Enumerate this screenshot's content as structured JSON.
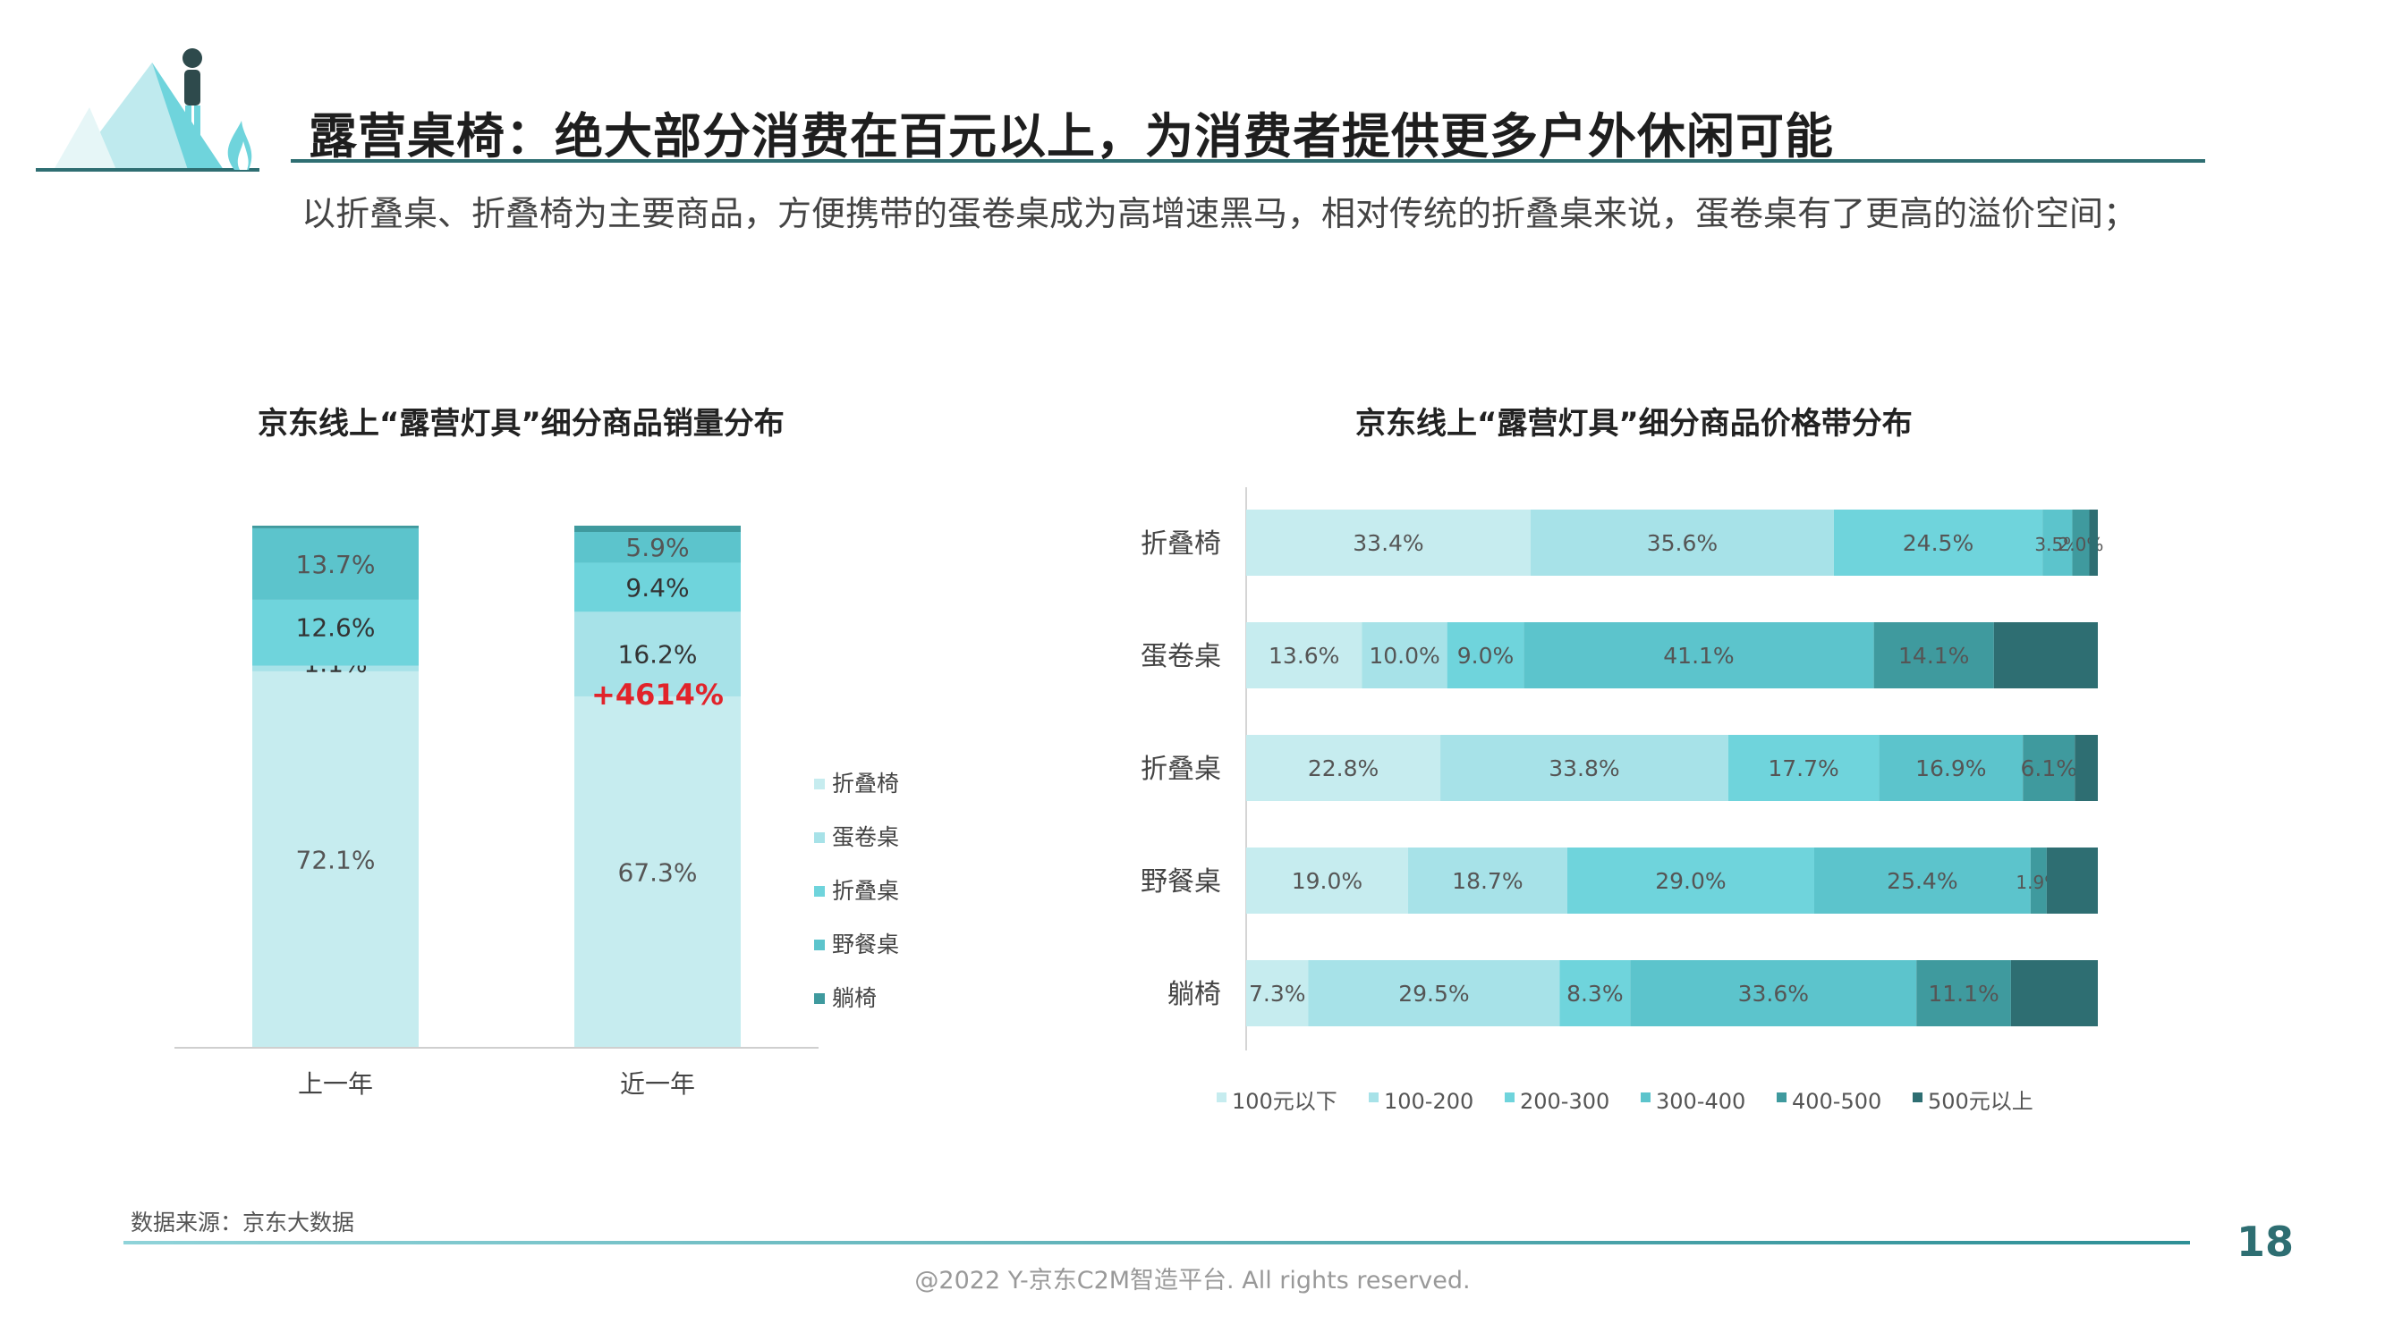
{
  "header": {
    "title": "露营桌椅：绝大部分消费在百元以上，为消费者提供更多户外休闲可能",
    "subtitle": "以折叠桌、折叠椅为主要商品，方便携带的蛋卷桌成为高增速黑马，相对传统的折叠桌来说，蛋卷桌有了更高的溢价空间；"
  },
  "footer": {
    "source": "数据来源：京东大数据",
    "page_number": "18",
    "copyright": "@2022 Y-京东C2M智造平台. All rights reserved."
  },
  "colors": {
    "c1": "#c6ecef",
    "c2": "#a7e2e8",
    "c3": "#6fd4dc",
    "c4": "#5cc4cc",
    "c5": "#3f9a9e",
    "accent": "#2e6e72",
    "highlight": "#e1242b"
  },
  "chart_data": [
    {
      "type": "bar",
      "stacked": true,
      "title": "京东线上“露营灯具”细分商品销量分布",
      "categories": [
        "上一年",
        "近一年"
      ],
      "series": [
        {
          "name": "折叠椅",
          "values": [
            72.1,
            67.3
          ]
        },
        {
          "name": "蛋卷桌",
          "values": [
            1.1,
            16.2
          ]
        },
        {
          "name": "折叠桌",
          "values": [
            12.6,
            9.4
          ]
        },
        {
          "name": "野餐桌",
          "values": [
            13.7,
            5.9
          ]
        },
        {
          "name": "躺椅",
          "values": [
            0.5,
            1.2
          ]
        }
      ],
      "labels": [
        [
          "72.1%",
          "1.1%",
          "12.6%",
          "13.7%",
          ""
        ],
        [
          "67.3%",
          "16.2%",
          "9.4%",
          "5.9%",
          ""
        ]
      ],
      "annotation": {
        "category": "近一年",
        "text": "+4614%"
      },
      "ylim": [
        0,
        100
      ],
      "legend": "right"
    },
    {
      "type": "bar",
      "orientation": "horizontal",
      "stacked": true,
      "title": "京东线上“露营灯具”细分商品价格带分布",
      "categories": [
        "折叠椅",
        "蛋卷桌",
        "折叠桌",
        "野餐桌",
        "躺椅"
      ],
      "series": [
        {
          "name": "100元以下",
          "values": [
            33.4,
            13.6,
            22.8,
            19.0,
            7.3
          ]
        },
        {
          "name": "100-200",
          "values": [
            35.6,
            10.0,
            33.8,
            18.7,
            29.5
          ]
        },
        {
          "name": "200-300",
          "values": [
            24.5,
            9.0,
            17.7,
            29.0,
            8.3
          ]
        },
        {
          "name": "300-400",
          "values": [
            3.5,
            41.1,
            16.9,
            25.4,
            33.6
          ]
        },
        {
          "name": "400-500",
          "values": [
            2.0,
            14.1,
            6.1,
            1.9,
            11.1
          ]
        },
        {
          "name": "500元以上",
          "values": [
            1.0,
            12.2,
            2.7,
            6.0,
            10.2
          ]
        }
      ],
      "labels": [
        [
          "33.4%",
          "35.6%",
          "24.5%",
          "3.5%",
          "2.0%",
          ""
        ],
        [
          "13.6%",
          "10.0%",
          "9.0%",
          "41.1%",
          "14.1%",
          ""
        ],
        [
          "22.8%",
          "33.8%",
          "17.7%",
          "16.9%",
          "6.1%",
          ""
        ],
        [
          "19.0%",
          "18.7%",
          "29.0%",
          "25.4%",
          "1.9%",
          ""
        ],
        [
          "7.3%",
          "29.5%",
          "8.3%",
          "33.6%",
          "11.1%",
          ""
        ]
      ],
      "xlim": [
        0,
        100
      ],
      "legend": "bottom"
    }
  ]
}
